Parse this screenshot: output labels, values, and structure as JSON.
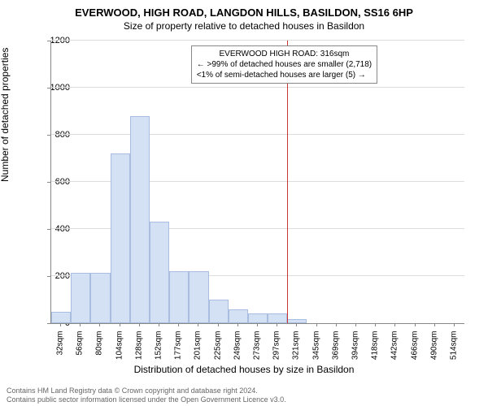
{
  "titles": {
    "line1": "EVERWOOD, HIGH ROAD, LANGDON HILLS, BASILDON, SS16 6HP",
    "line2": "Size of property relative to detached houses in Basildon"
  },
  "axes": {
    "ylabel": "Number of detached properties",
    "xlabel": "Distribution of detached houses by size in Basildon",
    "ylim_max": 1200,
    "y_ticks": [
      0,
      200,
      400,
      600,
      800,
      1000,
      1200
    ],
    "x_ticks": [
      "32sqm",
      "56sqm",
      "80sqm",
      "104sqm",
      "128sqm",
      "152sqm",
      "177sqm",
      "201sqm",
      "225sqm",
      "249sqm",
      "273sqm",
      "297sqm",
      "321sqm",
      "345sqm",
      "369sqm",
      "394sqm",
      "418sqm",
      "442sqm",
      "466sqm",
      "490sqm",
      "514sqm"
    ],
    "label_fontsize": 12,
    "tick_fontsize": 10
  },
  "chart": {
    "type": "histogram",
    "bar_fill": "#d4e1f4",
    "bar_border": "#a8bde0",
    "grid_color": "#dddddd",
    "background": "#ffffff",
    "values": [
      50,
      215,
      215,
      720,
      880,
      430,
      220,
      220,
      100,
      60,
      40,
      40,
      18,
      0,
      0,
      0,
      0,
      0,
      0,
      0,
      0
    ],
    "marker_color": "#cc3333",
    "marker_bin_index": 12
  },
  "annotation": {
    "title": "EVERWOOD HIGH ROAD: 316sqm",
    "line2": "← >99% of detached houses are smaller (2,718)",
    "line3": "<1% of semi-detached houses are larger (5) →"
  },
  "footer": {
    "line1": "Contains HM Land Registry data © Crown copyright and database right 2024.",
    "line2": "Contains public sector information licensed under the Open Government Licence v3.0."
  }
}
